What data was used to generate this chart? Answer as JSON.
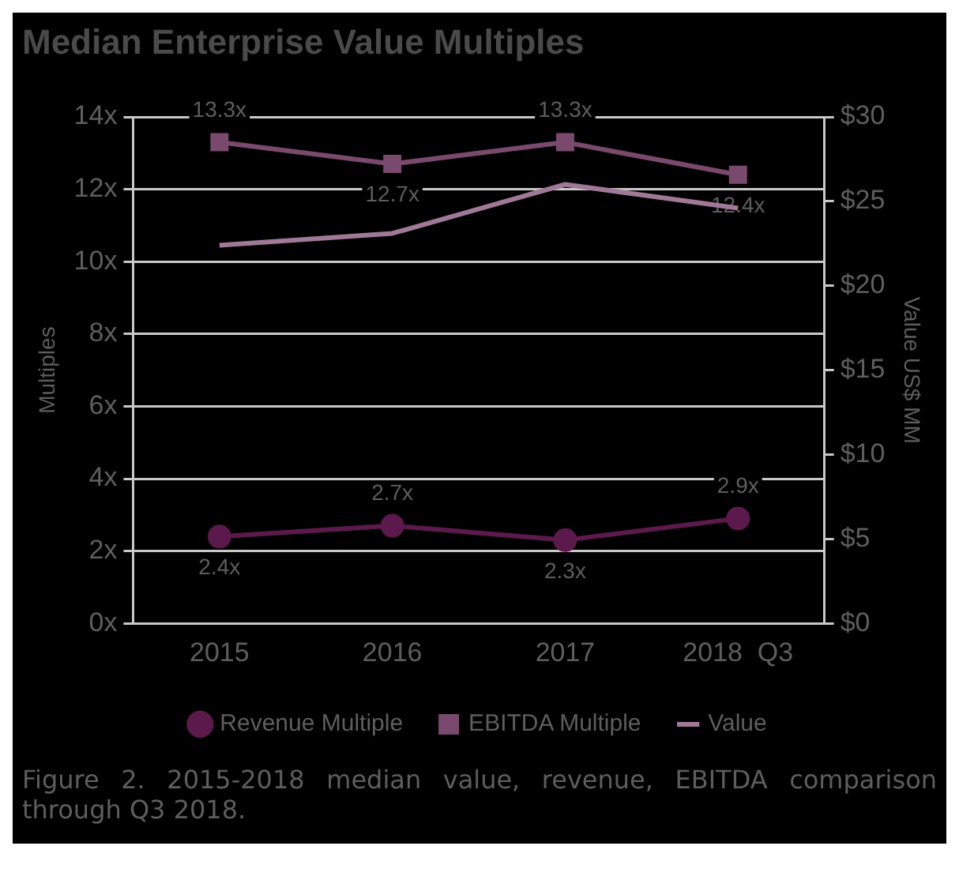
{
  "chart_data": {
    "type": "line",
    "title": "Median Enterprise Value Multiples",
    "ylabel": "Multiples",
    "y2label": "Value US$ MM",
    "categories": [
      "2015",
      "2016",
      "2017",
      "2018  Q3"
    ],
    "series": [
      {
        "name": "Revenue Multiple",
        "color": "#5c1a4c",
        "values": [
          2.4,
          2.7,
          2.3,
          2.9
        ],
        "marker": "circle",
        "value_labels": [
          "2.4x",
          "2.7x",
          "2.3x",
          "2.9x"
        ]
      },
      {
        "name": "EBITDA Multiple",
        "color": "#7a4a6e",
        "values": [
          13.3,
          12.7,
          13.3,
          12.4
        ],
        "marker": "square",
        "value_labels": [
          "13.3x",
          "12.7x",
          "13.3x",
          "12.4x"
        ]
      },
      {
        "name": "Value",
        "color": "#a07898",
        "values": [
          22.4,
          23.1,
          26.0,
          24.6
        ],
        "marker": "none",
        "axis": "y2"
      }
    ],
    "ylim": [
      0,
      14
    ],
    "yticks": [
      {
        "value": 0,
        "label": "0x"
      },
      {
        "value": 2,
        "label": "2x"
      },
      {
        "value": 4,
        "label": "4x"
      },
      {
        "value": 6,
        "label": "6x"
      },
      {
        "value": 8,
        "label": "8x"
      },
      {
        "value": 10,
        "label": "10x"
      },
      {
        "value": 12,
        "label": "12x"
      },
      {
        "value": 14,
        "label": "14x"
      }
    ],
    "y2lim": [
      0,
      30
    ],
    "y2ticks": [
      {
        "value": 0,
        "label": "$0"
      },
      {
        "value": 5,
        "label": "$5"
      },
      {
        "value": 10,
        "label": "$10"
      },
      {
        "value": 15,
        "label": "$15"
      },
      {
        "value": 20,
        "label": "$20"
      },
      {
        "value": 25,
        "label": "$25"
      },
      {
        "value": 30,
        "label": "$30"
      }
    ],
    "grid": "y",
    "legend": "bottom",
    "line_style": "solid",
    "annotations": [
      "Figure 2. 2015-2018 median value, revenue, EBITDA comparison through Q3 2018."
    ]
  }
}
